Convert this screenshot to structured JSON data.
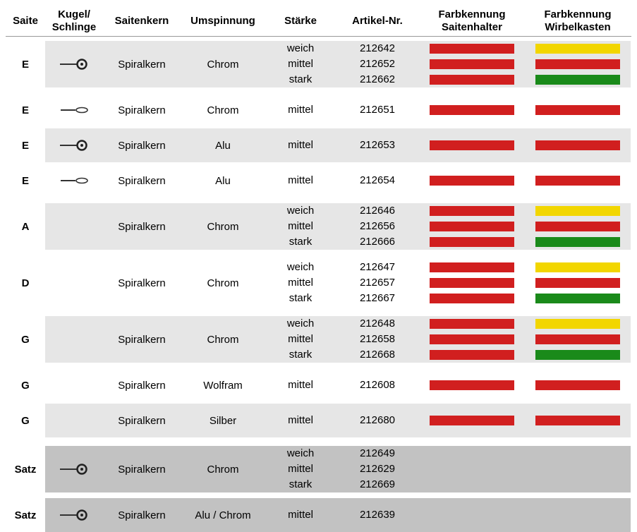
{
  "colors": {
    "red": "#d11f1f",
    "yellow": "#f2d600",
    "green": "#1a8a1a"
  },
  "header": {
    "saite": "Saite",
    "kugel": "Kugel/\nSchlinge",
    "kern": "Saitenkern",
    "ums": "Umspinnung",
    "staerke": "Stärke",
    "artikel": "Artikel-Nr.",
    "fk1": "Farbkennung\nSaitenhalter",
    "fk2": "Farbkennung\nWirbelkasten"
  },
  "groups": [
    {
      "saite": "E",
      "icon": "ball",
      "kern": "Spiralkern",
      "ums": "Chrom",
      "bg": "light",
      "rows": [
        {
          "staerke": "weich",
          "artikel": "212642",
          "fk1": "red",
          "fk2": "yellow"
        },
        {
          "staerke": "mittel",
          "artikel": "212652",
          "fk1": "red",
          "fk2": "red"
        },
        {
          "staerke": "stark",
          "artikel": "212662",
          "fk1": "red",
          "fk2": "green"
        }
      ]
    },
    {
      "saite": "E",
      "icon": "loop",
      "kern": "Spiralkern",
      "ums": "Chrom",
      "bg": "white",
      "rows": [
        {
          "staerke": "mittel",
          "artikel": "212651",
          "fk1": "red",
          "fk2": "red"
        }
      ]
    },
    {
      "saite": "E",
      "icon": "ball",
      "kern": "Spiralkern",
      "ums": "Alu",
      "bg": "light",
      "rows": [
        {
          "staerke": "mittel",
          "artikel": "212653",
          "fk1": "red",
          "fk2": "red"
        }
      ]
    },
    {
      "saite": "E",
      "icon": "loop",
      "kern": "Spiralkern",
      "ums": "Alu",
      "bg": "white",
      "rows": [
        {
          "staerke": "mittel",
          "artikel": "212654",
          "fk1": "red",
          "fk2": "red"
        }
      ]
    },
    {
      "saite": "A",
      "icon": "",
      "kern": "Spiralkern",
      "ums": "Chrom",
      "bg": "light",
      "rows": [
        {
          "staerke": "weich",
          "artikel": "212646",
          "fk1": "red",
          "fk2": "yellow"
        },
        {
          "staerke": "mittel",
          "artikel": "212656",
          "fk1": "red",
          "fk2": "red"
        },
        {
          "staerke": "stark",
          "artikel": "212666",
          "fk1": "red",
          "fk2": "green"
        }
      ]
    },
    {
      "saite": "D",
      "icon": "",
      "kern": "Spiralkern",
      "ums": "Chrom",
      "bg": "white",
      "rows": [
        {
          "staerke": "weich",
          "artikel": "212647",
          "fk1": "red",
          "fk2": "yellow"
        },
        {
          "staerke": "mittel",
          "artikel": "212657",
          "fk1": "red",
          "fk2": "red"
        },
        {
          "staerke": "stark",
          "artikel": "212667",
          "fk1": "red",
          "fk2": "green"
        }
      ]
    },
    {
      "saite": "G",
      "icon": "",
      "kern": "Spiralkern",
      "ums": "Chrom",
      "bg": "light",
      "rows": [
        {
          "staerke": "weich",
          "artikel": "212648",
          "fk1": "red",
          "fk2": "yellow"
        },
        {
          "staerke": "mittel",
          "artikel": "212658",
          "fk1": "red",
          "fk2": "red"
        },
        {
          "staerke": "stark",
          "artikel": "212668",
          "fk1": "red",
          "fk2": "green"
        }
      ]
    },
    {
      "saite": "G",
      "icon": "",
      "kern": "Spiralkern",
      "ums": "Wolfram",
      "bg": "white",
      "rows": [
        {
          "staerke": "mittel",
          "artikel": "212608",
          "fk1": "red",
          "fk2": "red"
        }
      ]
    },
    {
      "saite": "G",
      "icon": "",
      "kern": "Spiralkern",
      "ums": "Silber",
      "bg": "light",
      "rows": [
        {
          "staerke": "mittel",
          "artikel": "212680",
          "fk1": "red",
          "fk2": "red"
        }
      ]
    },
    {
      "saite": "Satz",
      "icon": "ball",
      "kern": "Spiralkern",
      "ums": "Chrom",
      "bg": "dark",
      "rows": [
        {
          "staerke": "weich",
          "artikel": "212649",
          "fk1": "",
          "fk2": ""
        },
        {
          "staerke": "mittel",
          "artikel": "212629",
          "fk1": "",
          "fk2": ""
        },
        {
          "staerke": "stark",
          "artikel": "212669",
          "fk1": "",
          "fk2": ""
        }
      ]
    },
    {
      "saite": "Satz",
      "icon": "ball",
      "kern": "Spiralkern",
      "ums": "Alu / Chrom",
      "bg": "dark",
      "rows": [
        {
          "staerke": "mittel",
          "artikel": "212639",
          "fk1": "",
          "fk2": ""
        }
      ]
    }
  ]
}
